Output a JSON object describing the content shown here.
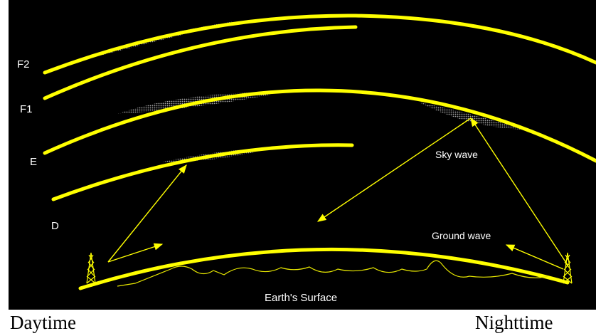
{
  "layers": {
    "f2": "F2",
    "f1": "F1",
    "e": "E",
    "d": "D"
  },
  "labels": {
    "sky_wave": "Sky wave",
    "ground_wave": "Ground wave",
    "earth_surface": "Earth's Surface"
  },
  "captions": {
    "daytime": "Daytime",
    "nighttime": "Nighttime"
  },
  "colors": {
    "background": "#000000",
    "layer": "#ffff00",
    "ray": "#ffff00",
    "ionized_band": "#9a9a9a",
    "label": "#ffffff"
  },
  "icons": {
    "transmitter": "radio-tower-icon"
  }
}
